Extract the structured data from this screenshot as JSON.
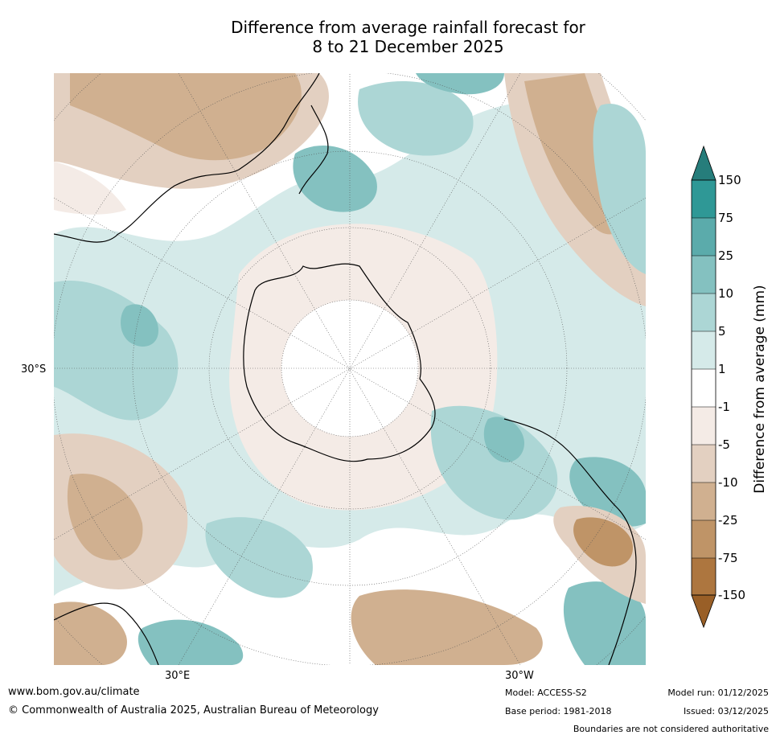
{
  "title": {
    "line1": "Difference from average rainfall forecast for",
    "line2": "8 to 21 December 2025"
  },
  "map": {
    "projection": "south-polar stereographic",
    "labels": {
      "lat_30s": "30°S",
      "lon_30e": "30°E",
      "lon_30w": "30°W"
    }
  },
  "colorbar": {
    "title": "Difference from average (mm)",
    "ticks": [
      "150",
      "75",
      "25",
      "10",
      "5",
      "1",
      "-1",
      "-5",
      "-10",
      "-25",
      "-75",
      "-150"
    ],
    "colors": {
      "above_150": "#267d7b",
      "75_150": "#2f9896",
      "25_75": "#5babab",
      "10_25": "#84c1c0",
      "5_10": "#acd6d5",
      "1_5": "#d5eae9",
      "m1_1": "#ffffff",
      "m5_m1": "#f4ebe6",
      "m10_m5": "#e3d0c1",
      "m25_m10": "#d0b090",
      "m75_m25": "#bf9467",
      "m150_m75": "#ad763f",
      "below_m150": "#995f27"
    }
  },
  "footer": {
    "url": "www.bom.gov.au/climate",
    "copyright": "© Commonwealth of Australia 2025, Australian Bureau of Meteorology",
    "model": "Model: ACCESS-S2",
    "base_period": "Base period: 1981-2018",
    "model_run": "Model run: 01/12/2025",
    "issued": "Issued: 03/12/2025",
    "disclaimer": "Boundaries are not considered authoritative"
  }
}
